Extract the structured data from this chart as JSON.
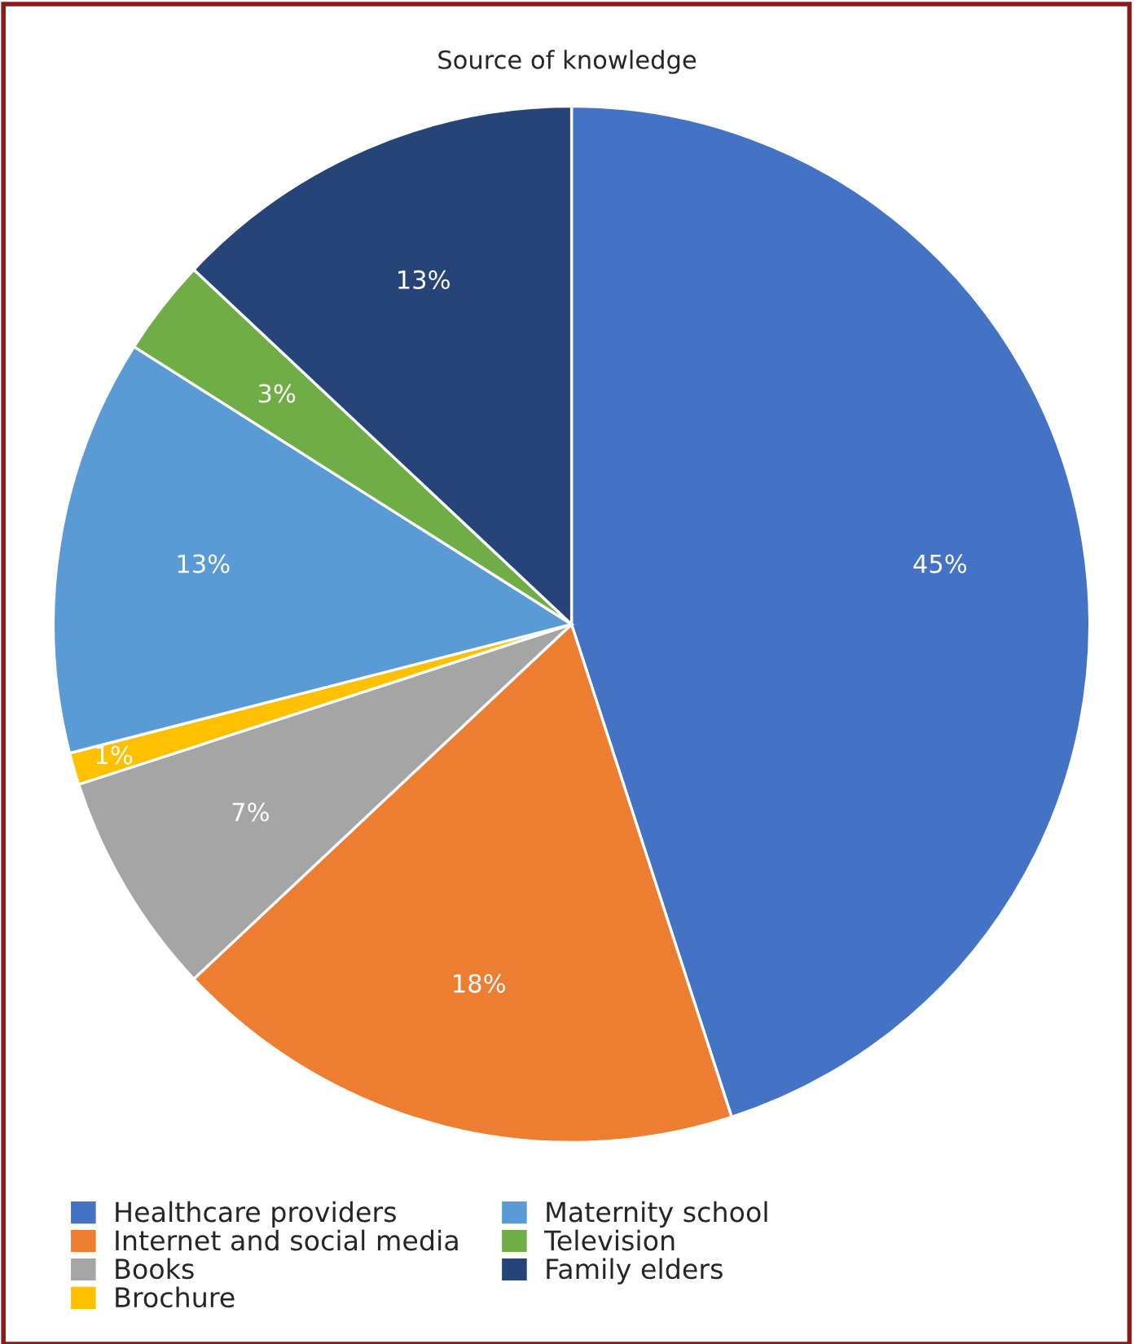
{
  "chart_data": {
    "type": "pie",
    "title": "Source of knowledge",
    "categories": [
      "Healthcare providers",
      "Internet and social media",
      "Books",
      "Brochure",
      "Maternity school",
      "Television",
      "Family elders"
    ],
    "values": [
      45,
      18,
      7,
      1,
      13,
      3,
      13
    ],
    "colors": [
      "#4472c4",
      "#ed7d31",
      "#a5a5a5",
      "#ffc000",
      "#5b9bd5",
      "#70ad47",
      "#264478"
    ],
    "value_labels": [
      "45%",
      "18%",
      "7%",
      "1%",
      "13%",
      "3%",
      "13%"
    ],
    "legend": "bottom left"
  }
}
